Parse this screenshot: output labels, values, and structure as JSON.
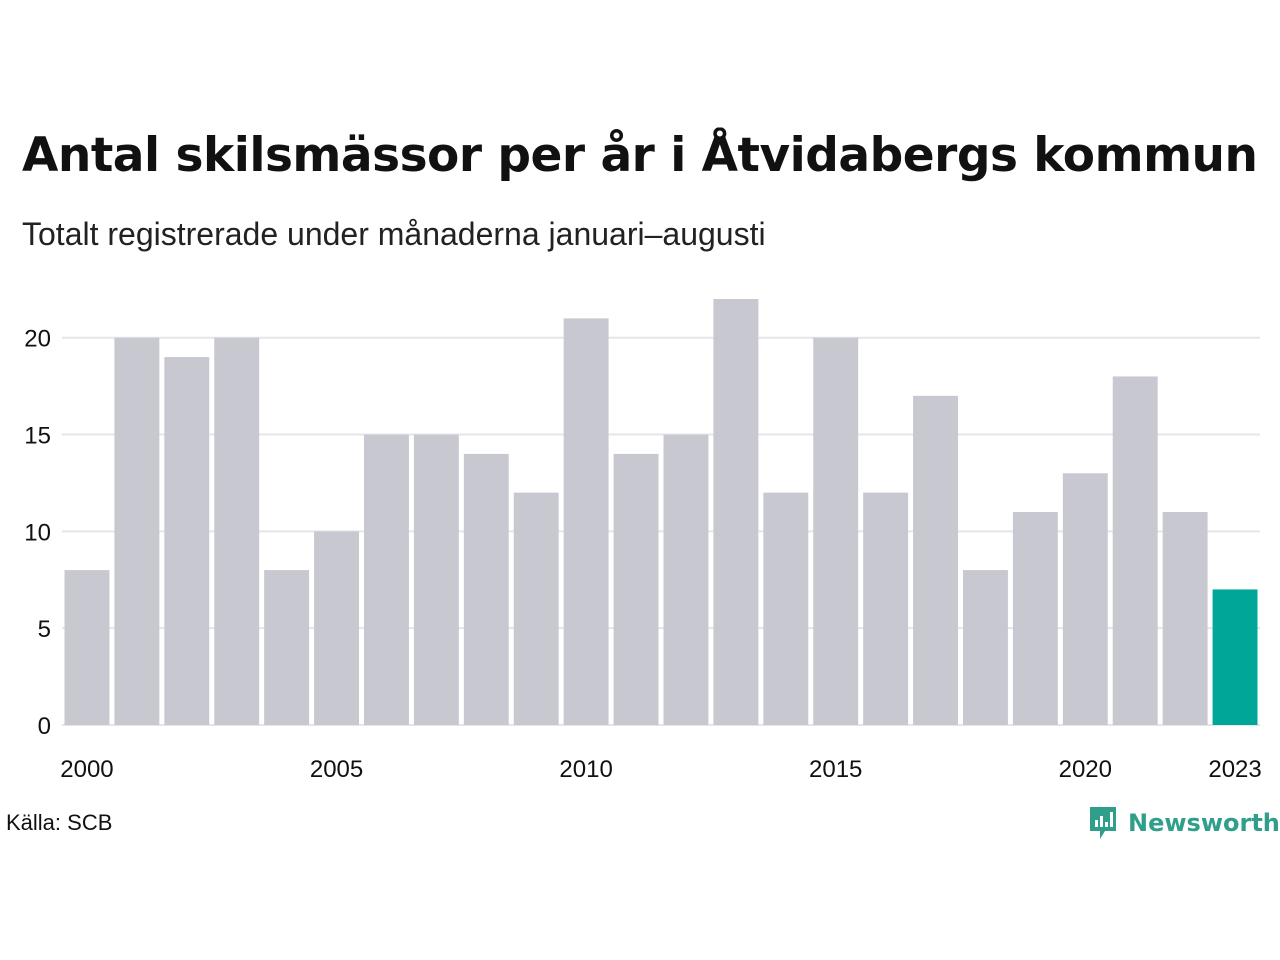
{
  "header": {
    "title": "Antal skilsmässor per år i Åtvidabergs kommun",
    "subtitle": "Totalt registrerade under månaderna januari–augusti"
  },
  "footer": {
    "source": "Källa: SCB",
    "brand": "Newsworthy"
  },
  "colors": {
    "bar": "#c8c8d0",
    "highlight": "#00a698",
    "grid": "#e6e6ea",
    "brand": "#2f9e8a"
  },
  "icons": {
    "brand_logo": "bar-chart-speech-bubble-icon"
  },
  "chart_data": {
    "type": "bar",
    "title": "Antal skilsmässor per år i Åtvidabergs kommun",
    "subtitle": "Totalt registrerade under månaderna januari–augusti",
    "categories": [
      "2000",
      "2001",
      "2002",
      "2003",
      "2004",
      "2005",
      "2006",
      "2007",
      "2008",
      "2009",
      "2010",
      "2011",
      "2012",
      "2013",
      "2014",
      "2015",
      "2016",
      "2017",
      "2018",
      "2019",
      "2020",
      "2021",
      "2022",
      "2023"
    ],
    "values": [
      8,
      20,
      19,
      20,
      8,
      10,
      15,
      15,
      14,
      12,
      21,
      14,
      15,
      22,
      12,
      20,
      12,
      17,
      8,
      11,
      13,
      18,
      11,
      7
    ],
    "highlight_category": "2023",
    "x_tick_labels": [
      "2000",
      "2005",
      "2010",
      "2015",
      "2020",
      "2023"
    ],
    "y_ticks": [
      0,
      5,
      10,
      15,
      20
    ],
    "ylim": [
      0,
      22
    ],
    "grid": "horizontal",
    "legend": "none"
  }
}
